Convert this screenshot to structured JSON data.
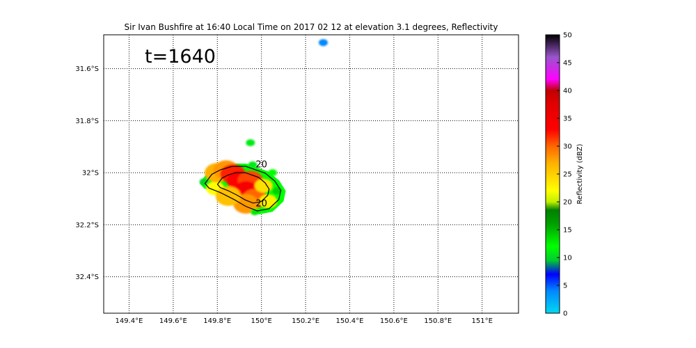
{
  "title": "Sir Ivan Bushfire at 16:40 Local Time on 2017 02 12 at elevation 3.1 degrees, Reflectivity",
  "time_label": "t=1640",
  "contour_label": "20",
  "colorbar": {
    "label": "Reflectivity (dBZ)",
    "min": 0,
    "max": 50,
    "tick_labels": [
      "0",
      "5",
      "10",
      "15",
      "20",
      "25",
      "30",
      "35",
      "40",
      "45",
      "50"
    ],
    "stops": [
      {
        "v": 0,
        "c": "#00d8f0"
      },
      {
        "v": 4,
        "c": "#0088ff"
      },
      {
        "v": 7,
        "c": "#0000ff"
      },
      {
        "v": 9.5,
        "c": "#00cc30"
      },
      {
        "v": 12,
        "c": "#00ff00"
      },
      {
        "v": 16,
        "c": "#00a000"
      },
      {
        "v": 18.5,
        "c": "#008000"
      },
      {
        "v": 20,
        "c": "#c0f000"
      },
      {
        "v": 22,
        "c": "#ffff00"
      },
      {
        "v": 27,
        "c": "#ffb000"
      },
      {
        "v": 30,
        "c": "#ff6600"
      },
      {
        "v": 33,
        "c": "#ff0000"
      },
      {
        "v": 38,
        "c": "#dd0000"
      },
      {
        "v": 40,
        "c": "#c00000"
      },
      {
        "v": 42,
        "c": "#ff00ff"
      },
      {
        "v": 46,
        "c": "#9955cc"
      },
      {
        "v": 50,
        "c": "#000000"
      }
    ]
  },
  "map": {
    "lon_range": [
      149.285,
      151.165
    ],
    "lat_range": [
      -32.54,
      -31.47
    ],
    "grid_style": "dotted",
    "lon_ticks": [
      {
        "v": 149.4,
        "label": "149.4°E"
      },
      {
        "v": 149.6,
        "label": "149.6°E"
      },
      {
        "v": 149.8,
        "label": "149.8°E"
      },
      {
        "v": 150.0,
        "label": "150°E"
      },
      {
        "v": 150.2,
        "label": "150.2°E"
      },
      {
        "v": 150.4,
        "label": "150.4°E"
      },
      {
        "v": 150.6,
        "label": "150.6°E"
      },
      {
        "v": 150.8,
        "label": "150.8°E"
      },
      {
        "v": 151.0,
        "label": "151°E"
      }
    ],
    "lat_ticks": [
      {
        "v": -31.6,
        "label": "31.6°S"
      },
      {
        "v": -31.8,
        "label": "31.8°S"
      },
      {
        "v": -32.0,
        "label": "32°S"
      },
      {
        "v": -32.2,
        "label": "32.2°S"
      },
      {
        "v": -32.4,
        "label": "32.4°S"
      }
    ]
  },
  "chart_data": {
    "type": "heatmap",
    "title": "Sir Ivan Bushfire at 16:40 Local Time on 2017 02 12 at elevation 3.1 degrees, Reflectivity",
    "variable": "Reflectivity",
    "units": "dBZ",
    "value_range": [
      0,
      50
    ],
    "contour_levels": [
      20
    ],
    "plume_polygon_lonlat": [
      [
        149.72,
        -32.04
      ],
      [
        149.755,
        -32.0
      ],
      [
        149.8,
        -31.98
      ],
      [
        149.86,
        -31.965
      ],
      [
        149.93,
        -31.965
      ],
      [
        149.98,
        -31.98
      ],
      [
        150.03,
        -31.995
      ],
      [
        150.08,
        -32.03
      ],
      [
        150.11,
        -32.07
      ],
      [
        150.1,
        -32.11
      ],
      [
        150.05,
        -32.15
      ],
      [
        149.99,
        -32.16
      ],
      [
        149.93,
        -32.14
      ],
      [
        149.87,
        -32.11
      ],
      [
        149.8,
        -32.08
      ],
      [
        149.74,
        -32.06
      ]
    ],
    "cells": [
      {
        "lon": 149.74,
        "lat": -32.035,
        "dbz": 10
      },
      {
        "lon": 149.79,
        "lat": -32.06,
        "dbz": 22
      },
      {
        "lon": 149.8,
        "lat": -32.0,
        "dbz": 27
      },
      {
        "lon": 149.84,
        "lat": -31.99,
        "dbz": 28
      },
      {
        "lon": 149.87,
        "lat": -32.005,
        "dbz": 32
      },
      {
        "lon": 149.9,
        "lat": -32.03,
        "dbz": 33
      },
      {
        "lon": 149.95,
        "lat": -32.03,
        "dbz": 31
      },
      {
        "lon": 149.93,
        "lat": -32.07,
        "dbz": 34
      },
      {
        "lon": 149.97,
        "lat": -32.1,
        "dbz": 30
      },
      {
        "lon": 149.93,
        "lat": -32.12,
        "dbz": 28
      },
      {
        "lon": 149.85,
        "lat": -32.09,
        "dbz": 26
      },
      {
        "lon": 150.01,
        "lat": -32.05,
        "dbz": 24
      },
      {
        "lon": 150.03,
        "lat": -32.11,
        "dbz": 23
      },
      {
        "lon": 150.07,
        "lat": -32.07,
        "dbz": 14
      },
      {
        "lon": 150.05,
        "lat": -32.0,
        "dbz": 12
      },
      {
        "lon": 149.96,
        "lat": -31.97,
        "dbz": 11
      },
      {
        "lon": 149.97,
        "lat": -32.15,
        "dbz": 13
      },
      {
        "lon": 149.95,
        "lat": -31.885,
        "dbz": 11
      },
      {
        "lon": 150.28,
        "lat": -31.5,
        "dbz": 4
      }
    ]
  }
}
